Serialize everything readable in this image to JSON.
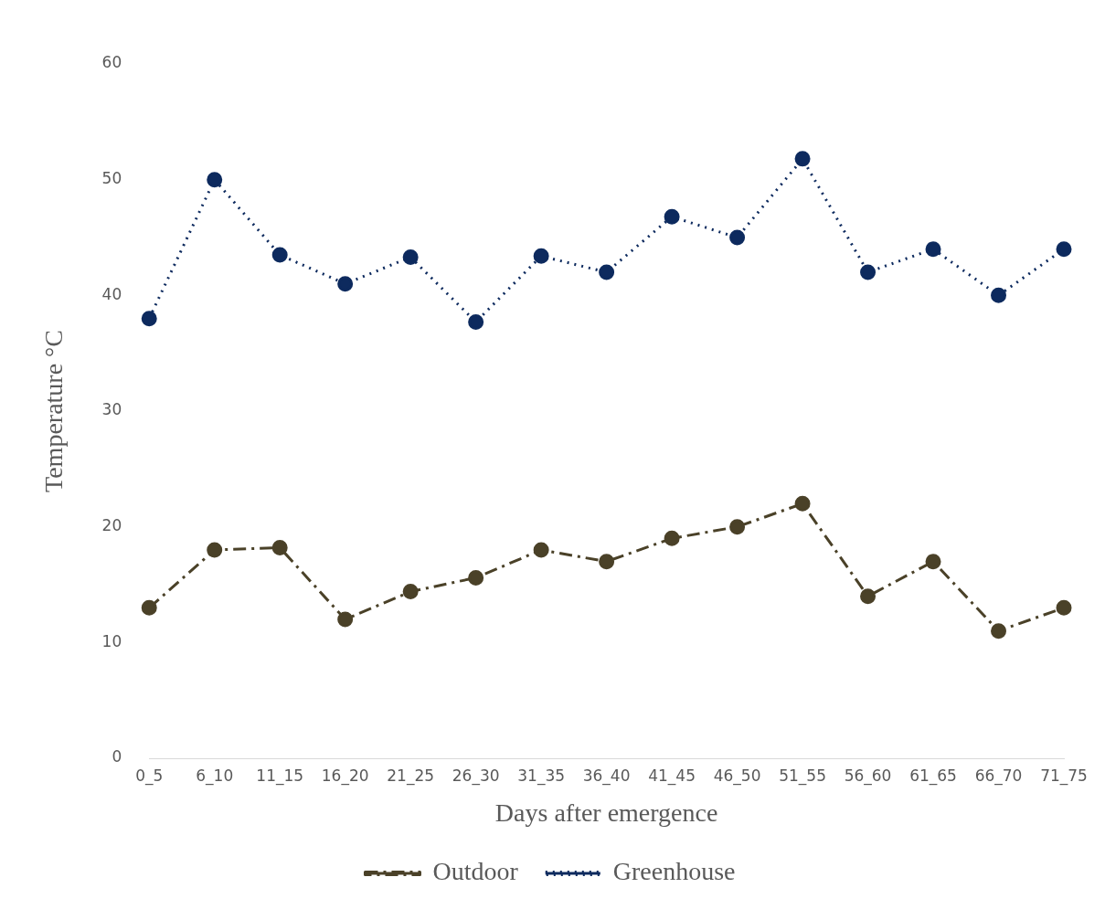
{
  "chart_data": {
    "type": "line",
    "xlabel": "Days after emergence",
    "ylabel": "Temperature °C",
    "categories": [
      "0_5",
      "6_10",
      "11_15",
      "16_20",
      "21_25",
      "26_30",
      "31_35",
      "36_40",
      "41_45",
      "46_50",
      "51_55",
      "56_60",
      "61_65",
      "66_70",
      "71_75"
    ],
    "series": [
      {
        "name": "Outdoor",
        "color": "#4a4128",
        "line_style": "dashed",
        "values": [
          13,
          18,
          18.2,
          12,
          14.4,
          15.6,
          18,
          17,
          19,
          20,
          22,
          14,
          17,
          11,
          13
        ]
      },
      {
        "name": "Greenhouse",
        "color": "#0d2a5e",
        "line_style": "dotted",
        "values": [
          38,
          50,
          43.5,
          41,
          43.3,
          37.7,
          43.4,
          42,
          46.8,
          45,
          51.8,
          42,
          44,
          40,
          44
        ]
      }
    ],
    "ylim": [
      0,
      60
    ],
    "yticks": [
      0,
      10,
      20,
      30,
      40,
      50,
      60
    ],
    "grid": false,
    "legend": "bottom",
    "marker": "circle"
  }
}
